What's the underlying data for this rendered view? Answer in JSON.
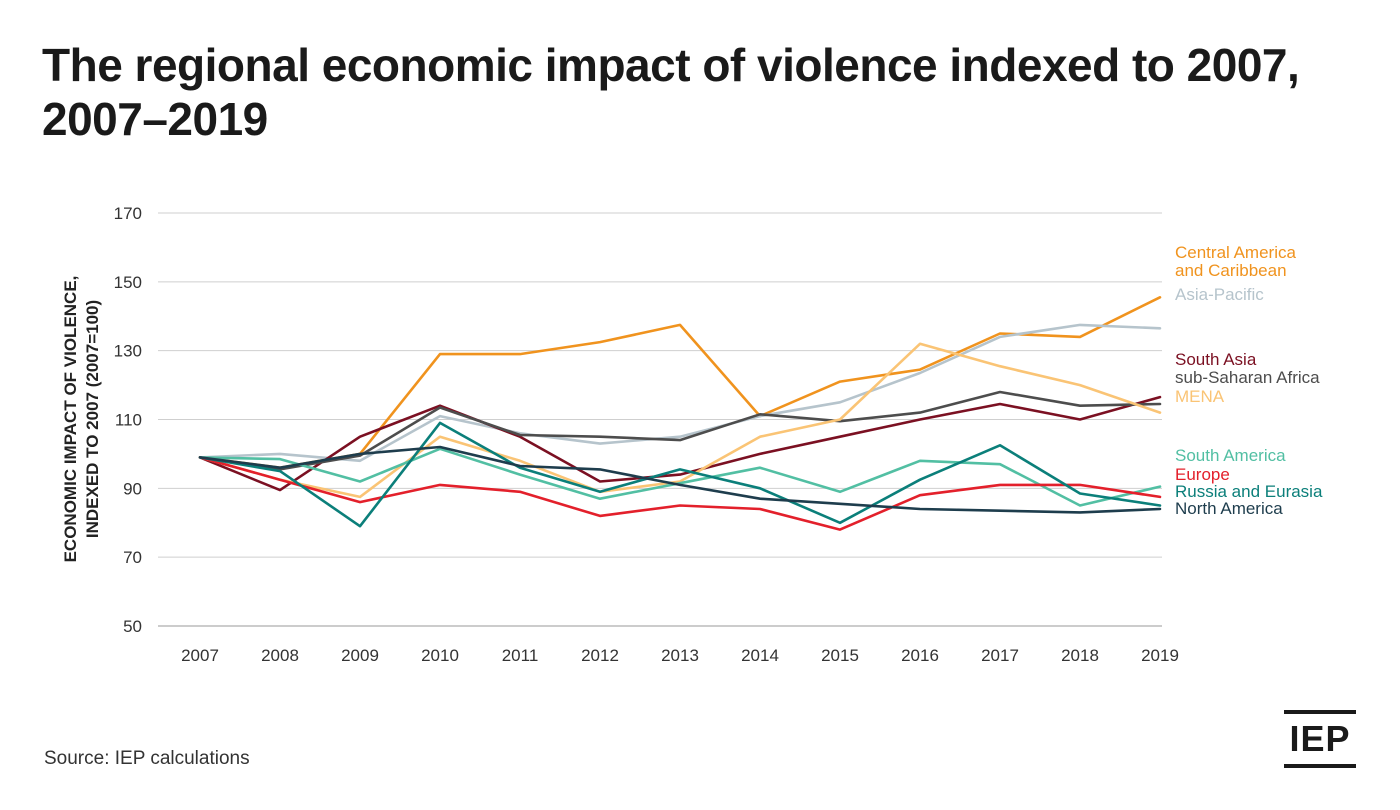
{
  "title": "The regional economic impact of violence indexed to 2007, 2007–2019",
  "source": "Source: IEP calculations",
  "logo_text": "IEP",
  "chart_data": {
    "type": "line",
    "title": "The regional economic impact of violence indexed to 2007, 2007–2019",
    "ylabel_lines": [
      "ECONOMIC IMPACT OF VIOLENCE,",
      "INDEXED TO 2007 (2007=100)"
    ],
    "xlabel": "",
    "ylim": [
      50,
      170
    ],
    "yticks": [
      50,
      70,
      90,
      110,
      130,
      150,
      170
    ],
    "grid": true,
    "legend_position": "right",
    "x": [
      "2007",
      "2008",
      "2009",
      "2010",
      "2011",
      "2012",
      "2013",
      "2014",
      "2015",
      "2016",
      "2017",
      "2018",
      "2019"
    ],
    "series": [
      {
        "name": "Central America and Caribbean",
        "label_lines": [
          "Central America",
          "and Caribbean"
        ],
        "color": "#f0931e",
        "values": [
          99,
          96,
          100,
          129,
          129,
          132.5,
          137.5,
          111,
          121,
          124.5,
          135,
          134,
          145.5
        ]
      },
      {
        "name": "Asia-Pacific",
        "label_lines": [
          "Asia-Pacific"
        ],
        "color": "#b6c4cc",
        "values": [
          99,
          100,
          98,
          111,
          106,
          103,
          105,
          111,
          115,
          123.5,
          134,
          137.5,
          136.5
        ]
      },
      {
        "name": "South Asia",
        "label_lines": [
          "South Asia"
        ],
        "color": "#7b1022",
        "values": [
          99,
          89.5,
          105,
          114,
          105,
          92,
          94,
          100,
          105,
          110,
          114.5,
          110,
          116.5
        ]
      },
      {
        "name": "sub-Saharan Africa",
        "label_lines": [
          "sub-Saharan Africa"
        ],
        "color": "#4d4d4d",
        "values": [
          99,
          95.5,
          99.5,
          113.5,
          105.5,
          105,
          104,
          111.5,
          109.5,
          112,
          118,
          114,
          114.5
        ]
      },
      {
        "name": "MENA",
        "label_lines": [
          "MENA"
        ],
        "color": "#fac475",
        "values": [
          99,
          92.5,
          87.5,
          105,
          98,
          89,
          92,
          105,
          110,
          132,
          125.5,
          120,
          112
        ]
      },
      {
        "name": "South America",
        "label_lines": [
          "South America"
        ],
        "color": "#52bfa3",
        "values": [
          99,
          98.5,
          92,
          101.5,
          94,
          87,
          91.5,
          96,
          89,
          98,
          97,
          85,
          90.5
        ]
      },
      {
        "name": "Europe",
        "label_lines": [
          "Europe"
        ],
        "color": "#e3202b",
        "values": [
          99,
          92.5,
          86,
          91,
          89,
          82,
          85,
          84,
          78,
          88,
          91,
          91,
          87.5
        ]
      },
      {
        "name": "Russia and Eurasia",
        "label_lines": [
          "Russia and Eurasia"
        ],
        "color": "#0b7f7a",
        "values": [
          99,
          95,
          79,
          109,
          96,
          89,
          95.5,
          90,
          80,
          92.5,
          102.5,
          88.5,
          85
        ]
      },
      {
        "name": "North America",
        "label_lines": [
          "North America"
        ],
        "color": "#1e3d4d",
        "values": [
          99,
          96,
          100,
          102,
          96.5,
          95.5,
          91,
          87,
          85.5,
          84,
          83.5,
          83,
          84
        ]
      }
    ]
  }
}
